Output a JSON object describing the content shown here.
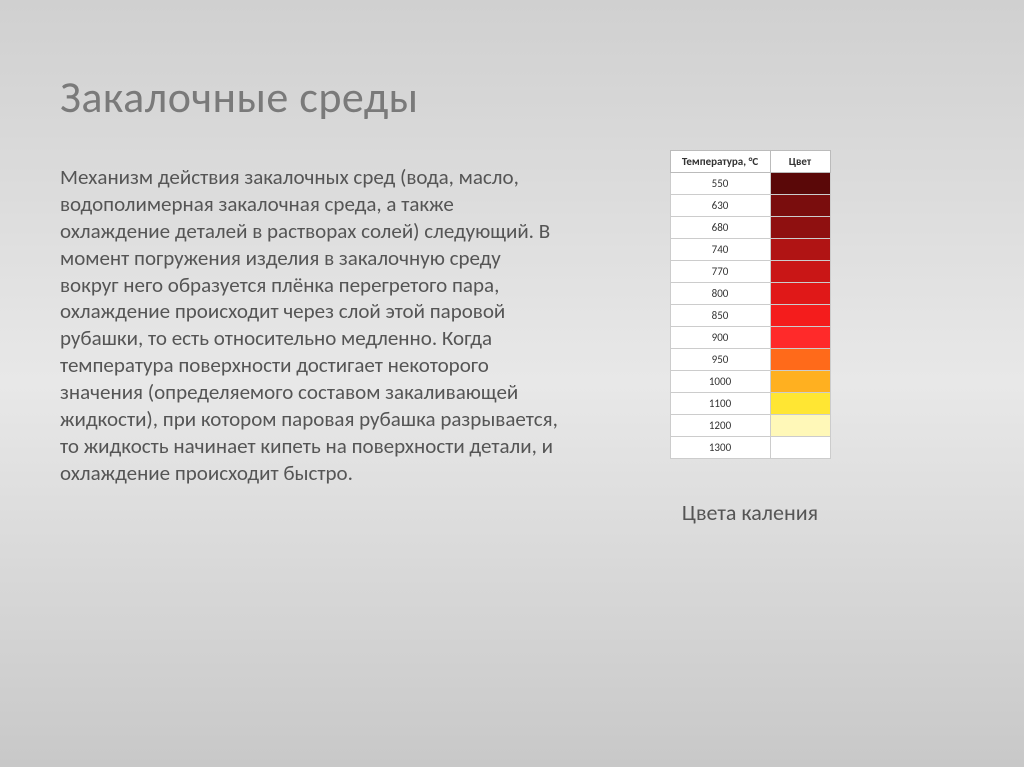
{
  "title": "Закалочные среды",
  "body_text": "Механизм действия закалочных сред (вода, масло, водополимерная закалочная среда, а также охлаждение деталей в растворах солей) следующий. В момент погружения изделия в закалочную среду вокруг него образуется плёнка перегретого пара, охлаждение происходит через слой этой паровой рубашки, то есть относительно медленно. Когда температура поверхности достигает некоторого значения (определяемого составом закаливающей жидкости), при котором паровая рубашка разрывается, то жидкость начинает кипеть на поверхности детали, и охлаждение происходит быстро.",
  "table": {
    "caption": "Цвета каления",
    "header_temp": "Температура, °С",
    "header_color": "Цвет",
    "rows": [
      {
        "temp": "550",
        "color": "#5a0808"
      },
      {
        "temp": "630",
        "color": "#7a0d0d"
      },
      {
        "temp": "680",
        "color": "#8f1010"
      },
      {
        "temp": "740",
        "color": "#b01414"
      },
      {
        "temp": "770",
        "color": "#c91616"
      },
      {
        "temp": "800",
        "color": "#e01818"
      },
      {
        "temp": "850",
        "color": "#f41c1c"
      },
      {
        "temp": "900",
        "color": "#ff2a2a"
      },
      {
        "temp": "950",
        "color": "#ff6a1a"
      },
      {
        "temp": "1000",
        "color": "#ffb020"
      },
      {
        "temp": "1100",
        "color": "#ffe633"
      },
      {
        "temp": "1200",
        "color": "#fff8b8"
      },
      {
        "temp": "1300",
        "color": "#ffffff"
      }
    ]
  },
  "style": {
    "background_gradient": [
      "#d0d0d0",
      "#e8e8e8",
      "#c8c8c8"
    ],
    "title_color": "#7a7a7a",
    "title_fontsize": 44,
    "body_fontsize": 21,
    "body_color": "#555555",
    "table_border_color": "#cccccc",
    "caption_fontsize": 22
  }
}
